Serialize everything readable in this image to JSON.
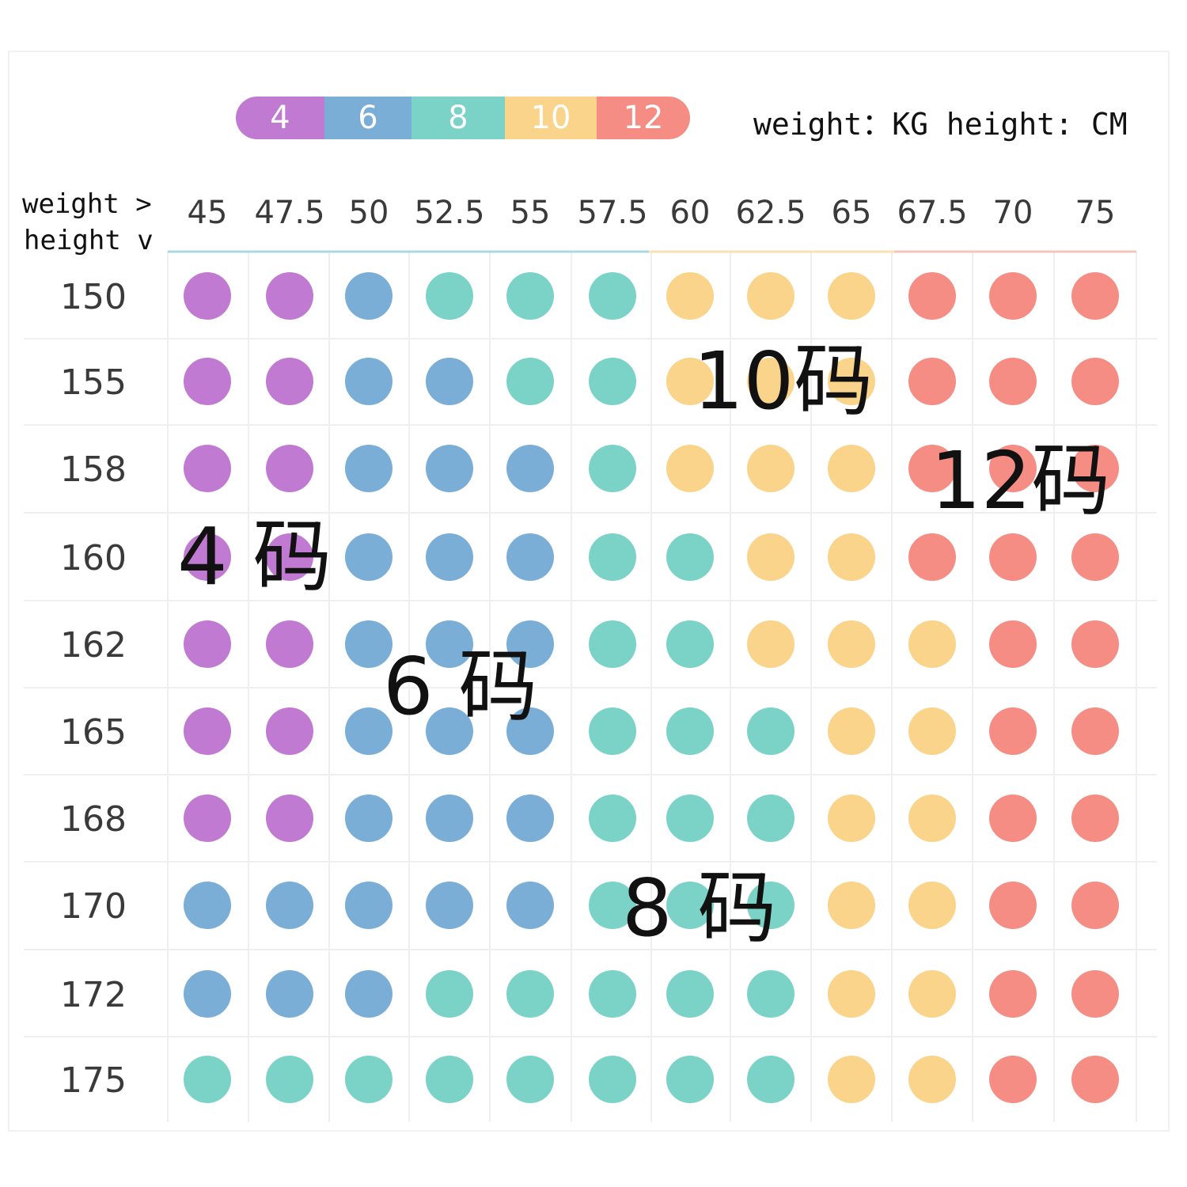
{
  "units_label": "weight：KG height: CM",
  "weight_caption": "weight >",
  "height_caption": "height v",
  "chart_data": {
    "type": "heatmap",
    "x_name": "weight",
    "y_name": "height",
    "x": [
      "45",
      "47.5",
      "50",
      "52.5",
      "55",
      "57.5",
      "60",
      "62.5",
      "65",
      "67.5",
      "70",
      "75"
    ],
    "y": [
      "150",
      "155",
      "158",
      "160",
      "162",
      "165",
      "168",
      "170",
      "172",
      "175"
    ],
    "legend": [
      {
        "label": "4",
        "color": "#c17ad1"
      },
      {
        "label": "6",
        "color": "#7aaed6"
      },
      {
        "label": "8",
        "color": "#7bd3c8"
      },
      {
        "label": "10",
        "color": "#fbd48c"
      },
      {
        "label": "12",
        "color": "#f58d84"
      }
    ],
    "sizes": [
      [
        4,
        4,
        6,
        8,
        8,
        8,
        10,
        10,
        10,
        12,
        12,
        12
      ],
      [
        4,
        4,
        6,
        6,
        8,
        8,
        10,
        10,
        10,
        12,
        12,
        12
      ],
      [
        4,
        4,
        6,
        6,
        6,
        8,
        10,
        10,
        10,
        12,
        12,
        12
      ],
      [
        4,
        4,
        6,
        6,
        6,
        8,
        8,
        10,
        10,
        12,
        12,
        12
      ],
      [
        4,
        4,
        6,
        6,
        6,
        8,
        8,
        10,
        10,
        10,
        12,
        12
      ],
      [
        4,
        4,
        6,
        6,
        6,
        8,
        8,
        8,
        10,
        10,
        12,
        12
      ],
      [
        4,
        4,
        6,
        6,
        6,
        8,
        8,
        8,
        10,
        10,
        12,
        12
      ],
      [
        6,
        6,
        6,
        6,
        6,
        8,
        8,
        8,
        10,
        10,
        12,
        12
      ],
      [
        6,
        6,
        6,
        8,
        8,
        8,
        8,
        8,
        10,
        10,
        12,
        12
      ],
      [
        8,
        8,
        8,
        8,
        8,
        8,
        8,
        8,
        10,
        10,
        12,
        12
      ]
    ],
    "annotations": [
      {
        "text": "4 码"
      },
      {
        "text": "6 码"
      },
      {
        "text": "8 码"
      },
      {
        "text": "10码"
      },
      {
        "text": "12码"
      }
    ]
  }
}
